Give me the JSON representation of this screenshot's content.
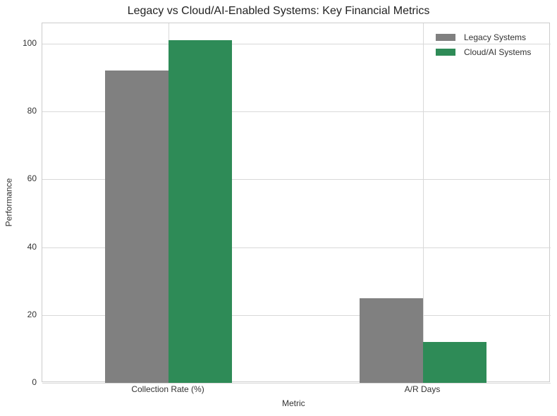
{
  "chart_data": {
    "type": "bar",
    "title": "Legacy vs Cloud/AI-Enabled Systems: Key Financial Metrics",
    "xlabel": "Metric",
    "ylabel": "Performance",
    "categories": [
      "Collection Rate (%)",
      "A/R Days"
    ],
    "series": [
      {
        "name": "Legacy Systems",
        "values": [
          92,
          25
        ],
        "color": "#808080"
      },
      {
        "name": "Cloud/AI Systems",
        "values": [
          101,
          12
        ],
        "color": "#2e8b57"
      }
    ],
    "yticks": [
      0,
      20,
      40,
      60,
      80,
      100
    ],
    "ylim": [
      0,
      106
    ],
    "grid": true,
    "legend_position": "upper right"
  }
}
